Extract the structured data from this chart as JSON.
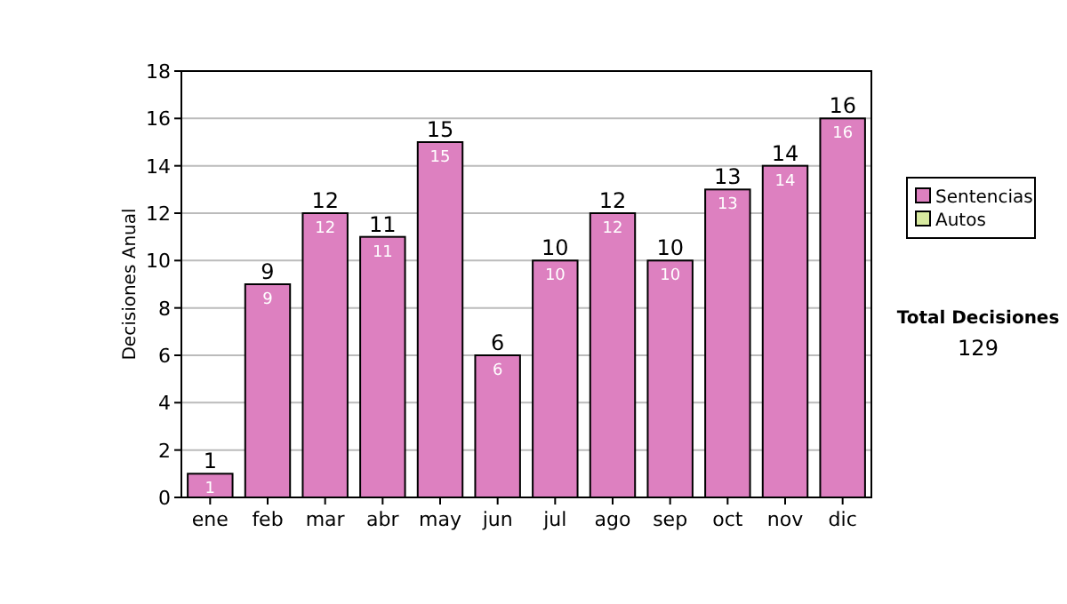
{
  "chart_data": {
    "type": "bar",
    "ylabel": "Decisiones Anual",
    "categories": [
      "ene",
      "feb",
      "mar",
      "abr",
      "may",
      "jun",
      "jul",
      "ago",
      "sep",
      "oct",
      "nov",
      "dic"
    ],
    "series": [
      {
        "name": "Sentencias",
        "color": "#dd80c0",
        "values": [
          1,
          9,
          12,
          11,
          15,
          6,
          10,
          12,
          10,
          13,
          14,
          16
        ],
        "value_labels": [
          "1",
          "9",
          "12",
          "11",
          "15",
          "6",
          "10",
          "12",
          "10",
          "13",
          "14",
          "16"
        ]
      },
      {
        "name": "Autos",
        "color": "#d8eaa0",
        "values": [
          0,
          0,
          0,
          0,
          0,
          0,
          0,
          0,
          0,
          0,
          0,
          0
        ]
      }
    ],
    "stacked": true,
    "totals": [
      "1",
      "9",
      "12",
      "11",
      "15",
      "6",
      "10",
      "12",
      "10",
      "13",
      "14",
      "16"
    ],
    "ylim": [
      0,
      18
    ],
    "yticks": [
      0,
      2,
      4,
      6,
      8,
      10,
      12,
      14,
      16,
      18
    ],
    "grid": "y",
    "legend": "right",
    "annotations": [
      "Total Decisiones",
      "129"
    ]
  }
}
